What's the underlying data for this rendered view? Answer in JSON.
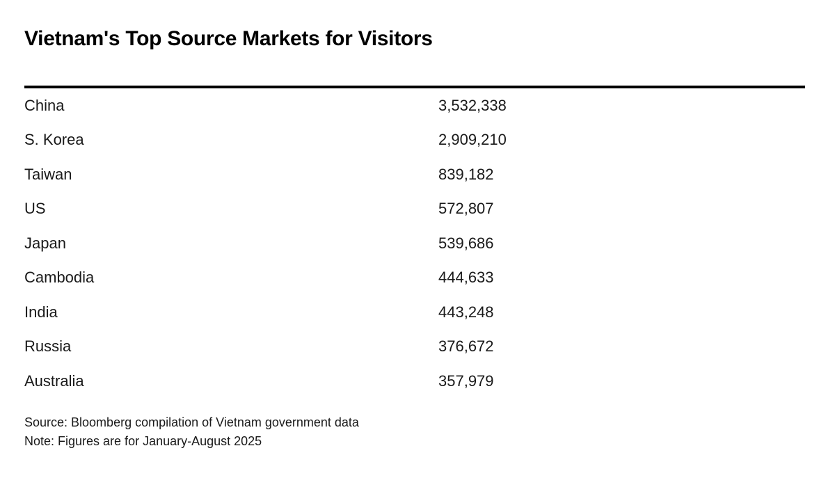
{
  "page": {
    "title": "Vietnam's Top Source Markets for Visitors",
    "source_line": "Source: Bloomberg compilation of Vietnam government data",
    "note_line": "Note: Figures are for January-August 2025"
  },
  "colors": {
    "background": "#ffffff",
    "title_text": "#000000",
    "body_text": "#1a1a1a",
    "rule": "#000000"
  },
  "chart_data": {
    "type": "table",
    "title": "Vietnam's Top Source Markets for Visitors",
    "columns": [
      "Market",
      "Visitors"
    ],
    "rows": [
      {
        "market": "China",
        "visitors": "3,532,338",
        "visitors_numeric": 3532338
      },
      {
        "market": "S. Korea",
        "visitors": "2,909,210",
        "visitors_numeric": 2909210
      },
      {
        "market": "Taiwan",
        "visitors": "839,182",
        "visitors_numeric": 839182
      },
      {
        "market": "US",
        "visitors": "572,807",
        "visitors_numeric": 572807
      },
      {
        "market": "Japan",
        "visitors": "539,686",
        "visitors_numeric": 539686
      },
      {
        "market": "Cambodia",
        "visitors": "444,633",
        "visitors_numeric": 444633
      },
      {
        "market": "India",
        "visitors": "443,248",
        "visitors_numeric": 443248
      },
      {
        "market": "Russia",
        "visitors": "376,672",
        "visitors_numeric": 376672
      },
      {
        "market": "Australia",
        "visitors": "357,979",
        "visitors_numeric": 357979
      }
    ],
    "source": "Source: Bloomberg compilation of Vietnam government data",
    "note": "Note: Figures are for January-August 2025",
    "layout": {
      "grid": false,
      "header_row_visible": false,
      "value_column_x": 630
    }
  }
}
